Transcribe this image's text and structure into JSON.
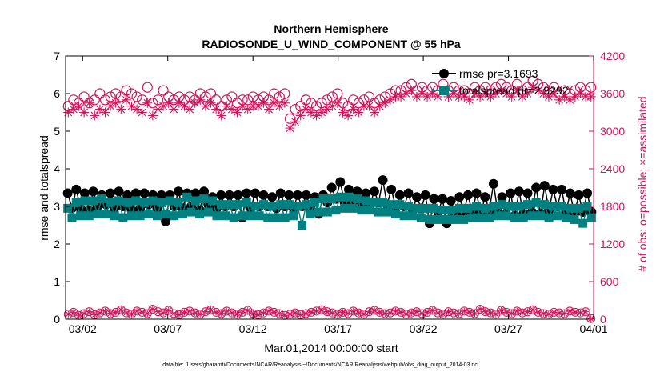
{
  "chart_data": {
    "type": "line",
    "title": "Northern Hemisphere",
    "subtitle": "RADIOSONDE_U_WIND_COMPONENT @ 55 hPa",
    "xlabel": "Mar.01,2014 00:00:00 start",
    "ylabel_left": "rmse and totalspread",
    "ylabel_right": "# of obs: o=possible; ×=assimilated",
    "x_ticks": [
      "03/02",
      "03/07",
      "03/12",
      "03/17",
      "03/22",
      "03/27",
      "04/01"
    ],
    "x_tick_days": [
      1,
      6,
      11,
      16,
      21,
      26,
      31
    ],
    "xlim_days": [
      0,
      31
    ],
    "ylim_left": [
      0,
      7
    ],
    "yticks_left": [
      "0",
      "1",
      "2",
      "3",
      "4",
      "5",
      "6",
      "7"
    ],
    "ylim_right": [
      0,
      4200
    ],
    "yticks_right": [
      "0",
      "600",
      "1200",
      "1800",
      "2400",
      "3000",
      "3600",
      "4200"
    ],
    "colors": {
      "rmse": "#000000",
      "totalspread": "#008080",
      "obs": "#c8175a"
    },
    "series": [
      {
        "name": "rmse",
        "legend": "rmse pr=3.1693",
        "axis": "left",
        "values": [
          3.35,
          2.95,
          3.45,
          2.95,
          3.35,
          2.9,
          3.4,
          3.0,
          3.3,
          3.05,
          3.35,
          2.95,
          3.4,
          3.0,
          3.3,
          2.9,
          3.35,
          2.95,
          3.35,
          3.05,
          3.3,
          2.95,
          3.3,
          2.6,
          3.3,
          3.0,
          3.4,
          2.95,
          3.35,
          3.0,
          3.35,
          2.9,
          3.4,
          3.05,
          3.25,
          2.95,
          3.3,
          3.0,
          3.3,
          3.0,
          3.3,
          2.7,
          3.35,
          2.95,
          3.35,
          3.0,
          3.3,
          3.0,
          3.25,
          2.95,
          3.35,
          3.0,
          3.3,
          2.95,
          3.3,
          3.0,
          3.3,
          3.0,
          3.25,
          2.8,
          3.3,
          3.1,
          3.5,
          3.2,
          3.65,
          3.1,
          3.45,
          3.15,
          3.4,
          3.1,
          3.35,
          3.05,
          3.4,
          3.1,
          3.7,
          3.05,
          3.45,
          3.0,
          3.3,
          3.0,
          3.35,
          2.9,
          3.25,
          2.95,
          3.3,
          2.55,
          3.2,
          2.85,
          3.2,
          2.55,
          3.15,
          2.8,
          3.25,
          2.85,
          3.3,
          2.85,
          3.35,
          2.8,
          3.25,
          2.9,
          3.6,
          2.85,
          3.25,
          2.8,
          3.35,
          2.75,
          3.4,
          2.8,
          3.35,
          2.85,
          3.5,
          2.8,
          3.55,
          2.9,
          3.45,
          3.0,
          3.45,
          2.85,
          3.35,
          2.8,
          3.3,
          2.85,
          3.35,
          2.85
        ]
      },
      {
        "name": "totalspread",
        "legend": "totalspread pr=2.9292",
        "axis": "left",
        "values": [
          2.95,
          2.7,
          3.1,
          2.75,
          3.15,
          2.75,
          3.15,
          2.8,
          3.2,
          2.8,
          3.1,
          2.75,
          3.15,
          2.7,
          3.1,
          2.75,
          3.15,
          2.75,
          3.1,
          2.8,
          3.15,
          2.75,
          3.1,
          2.8,
          3.15,
          2.75,
          3.1,
          2.8,
          3.25,
          2.85,
          3.15,
          2.8,
          3.2,
          2.85,
          3.15,
          2.75,
          3.05,
          2.75,
          3.05,
          2.7,
          3.05,
          2.75,
          3.1,
          2.75,
          3.0,
          2.75,
          3.05,
          2.7,
          3.0,
          2.7,
          3.05,
          2.7,
          3.05,
          2.75,
          3.0,
          2.5,
          3.05,
          2.8,
          3.1,
          2.85,
          3.2,
          2.85,
          3.2,
          2.9,
          3.25,
          2.95,
          3.25,
          2.95,
          3.2,
          2.9,
          3.15,
          2.9,
          3.1,
          2.85,
          3.1,
          2.85,
          3.05,
          2.8,
          3.05,
          2.75,
          3.0,
          2.75,
          2.95,
          2.7,
          2.95,
          2.65,
          2.95,
          2.65,
          2.9,
          2.65,
          2.9,
          2.65,
          2.95,
          2.65,
          2.95,
          2.7,
          3.0,
          2.7,
          2.95,
          2.7,
          3.0,
          2.75,
          3.05,
          2.75,
          3.0,
          2.7,
          3.0,
          2.7,
          3.05,
          2.75,
          3.1,
          2.75,
          3.05,
          2.7,
          3.0,
          2.75,
          3.0,
          2.7,
          2.95,
          2.65,
          2.95,
          2.55,
          3.0,
          2.7
        ]
      },
      {
        "name": "obs_possible",
        "legend": "",
        "axis": "right",
        "marker": "circle",
        "values": [
          3400,
          3500,
          3450,
          3550,
          3450,
          3500,
          3600,
          3500,
          3550,
          3600,
          3550,
          3650,
          3600,
          3550,
          3500,
          3700,
          3450,
          3500,
          3650,
          3550,
          3500,
          3550,
          3500,
          3550,
          3500,
          3600,
          3550,
          3600,
          3500,
          3400,
          3500,
          3550,
          3450,
          3500,
          3500,
          3550,
          3500,
          3550,
          3500,
          3600,
          3550,
          3600,
          3200,
          3350,
          3400,
          3500,
          3450,
          3400,
          3450,
          3500,
          3550,
          3600,
          3450,
          3400,
          3500,
          3450,
          3500,
          3550,
          3450,
          3500,
          3550,
          3600,
          3650,
          3650,
          3700,
          3750,
          3650,
          3700,
          3650,
          3700,
          3650,
          3750,
          3650,
          3700,
          3650,
          3650,
          3600,
          3700,
          3650,
          3700,
          3650,
          3700,
          3750,
          3700,
          3650,
          3750,
          3650,
          3700,
          3800,
          3750,
          3700,
          3650,
          3700,
          3600,
          3650,
          3600,
          3650,
          3700,
          3650,
          3700
        ]
      },
      {
        "name": "obs_assimilated",
        "legend": "",
        "axis": "right",
        "marker": "asterisk",
        "values": [
          3300,
          3350,
          3400,
          3300,
          3450,
          3250,
          3350,
          3300,
          3400,
          3450,
          3350,
          3500,
          3400,
          3350,
          3300,
          3450,
          3250,
          3350,
          3400,
          3450,
          3350,
          3450,
          3400,
          3350,
          3450,
          3500,
          3400,
          3450,
          3350,
          3250,
          3400,
          3350,
          3300,
          3400,
          3350,
          3400,
          3400,
          3450,
          3350,
          3450,
          3400,
          3450,
          3050,
          3150,
          3250,
          3350,
          3300,
          3250,
          3300,
          3350,
          3400,
          3450,
          3300,
          3250,
          3350,
          3300,
          3400,
          3400,
          3300,
          3400,
          3450,
          3500,
          3550,
          3550,
          3600,
          3650,
          3550,
          3600,
          3550,
          3600,
          3550,
          3650,
          3550,
          3600,
          3550,
          3550,
          3500,
          3600,
          3550,
          3600,
          3550,
          3600,
          3650,
          3600,
          3550,
          3650,
          3550,
          3600,
          3700,
          3650,
          3600,
          3550,
          3600,
          3500,
          3550,
          3500,
          3550,
          3600,
          3550,
          3550
        ]
      },
      {
        "name": "obs_possible_low",
        "legend": "",
        "axis": "right",
        "marker": "circle",
        "values": [
          80,
          110,
          60,
          90,
          120,
          70,
          100,
          130,
          90,
          110,
          150,
          100,
          80,
          130,
          110,
          90,
          160,
          120,
          100,
          140,
          90,
          70,
          110,
          130,
          100,
          80,
          120,
          150,
          110,
          90,
          130,
          100,
          80,
          110,
          140,
          90,
          70,
          100,
          130,
          110,
          90,
          60,
          80,
          100,
          70,
          90,
          110,
          130,
          150,
          120,
          100,
          80,
          110,
          90,
          130,
          100,
          80,
          120,
          140,
          110,
          90,
          100,
          130,
          110,
          80,
          100,
          120,
          90,
          110,
          140,
          100,
          80,
          120,
          100,
          90,
          130,
          110,
          90,
          160,
          120,
          100,
          80,
          140,
          110,
          90,
          130,
          100,
          120,
          150,
          110,
          90,
          80,
          110,
          100,
          90,
          130,
          110,
          100,
          120,
          10
        ]
      }
    ]
  },
  "footer": {
    "data_file": "data file: /Users/gharamti/Documents/NCAR/Reanalysis/~/Documents/NCAR/Reanalysis/webpub/obs_diag_output_2014-03.nc"
  }
}
